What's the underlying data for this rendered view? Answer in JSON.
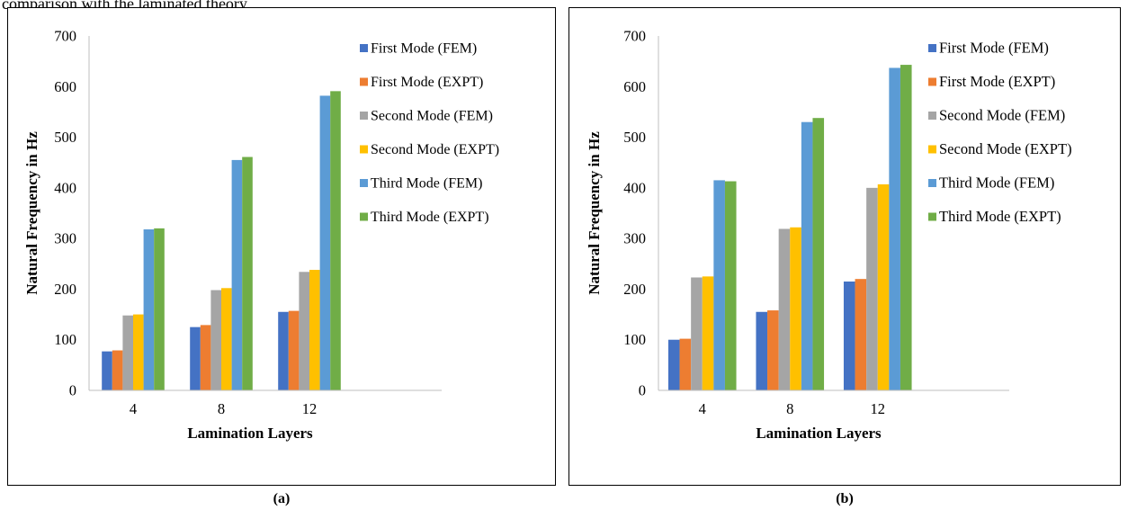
{
  "top_caption": "comparison with the laminated theory.",
  "panel_labels": [
    "(a)",
    "(b)"
  ],
  "colors": {
    "First Mode (FEM)": "#4472C4",
    "First Mode (EXPT)": "#ED7D31",
    "Second Mode (FEM)": "#A5A5A5",
    "Second Mode (EXPT)": "#FFC000",
    "Third Mode (FEM)": "#5B9BD5",
    "Third Mode (EXPT)": "#70AD47",
    "axis": "#bfbfbf"
  },
  "chart_data": [
    {
      "type": "bar",
      "title": "",
      "xlabel": "Lamination Layers",
      "ylabel": "Natural Frequency in Hz",
      "categories": [
        "4",
        "8",
        "12",
        ""
      ],
      "ylim": [
        0,
        700
      ],
      "yticks": [
        "0",
        "100",
        "200",
        "300",
        "400",
        "500",
        "600",
        "700"
      ],
      "grid": false,
      "legend": "right",
      "series": [
        {
          "name": "First Mode (FEM)",
          "values": [
            77,
            125,
            155,
            null
          ]
        },
        {
          "name": "First Mode (EXPT)",
          "values": [
            79,
            129,
            157,
            null
          ]
        },
        {
          "name": "Second Mode (FEM)",
          "values": [
            148,
            198,
            234,
            null
          ]
        },
        {
          "name": "Second Mode (EXPT)",
          "values": [
            150,
            202,
            238,
            null
          ]
        },
        {
          "name": "Third Mode (FEM)",
          "values": [
            318,
            455,
            582,
            null
          ]
        },
        {
          "name": "Third Mode (EXPT)",
          "values": [
            320,
            461,
            591,
            null
          ]
        }
      ]
    },
    {
      "type": "bar",
      "title": "",
      "xlabel": "Lamination Layers",
      "ylabel": "Natural Frequency in Hz",
      "categories": [
        "4",
        "8",
        "12",
        ""
      ],
      "ylim": [
        0,
        700
      ],
      "yticks": [
        "0",
        "100",
        "200",
        "300",
        "400",
        "500",
        "600",
        "700"
      ],
      "grid": false,
      "legend": "right",
      "series": [
        {
          "name": "First Mode (FEM)",
          "values": [
            100,
            155,
            215,
            null
          ]
        },
        {
          "name": "First Mode (EXPT)",
          "values": [
            102,
            158,
            220,
            null
          ]
        },
        {
          "name": "Second Mode (FEM)",
          "values": [
            223,
            319,
            400,
            null
          ]
        },
        {
          "name": "Second Mode (EXPT)",
          "values": [
            225,
            322,
            407,
            null
          ]
        },
        {
          "name": "Third Mode (FEM)",
          "values": [
            415,
            530,
            637,
            null
          ]
        },
        {
          "name": "Third Mode (EXPT)",
          "values": [
            413,
            538,
            643,
            null
          ]
        }
      ]
    }
  ]
}
